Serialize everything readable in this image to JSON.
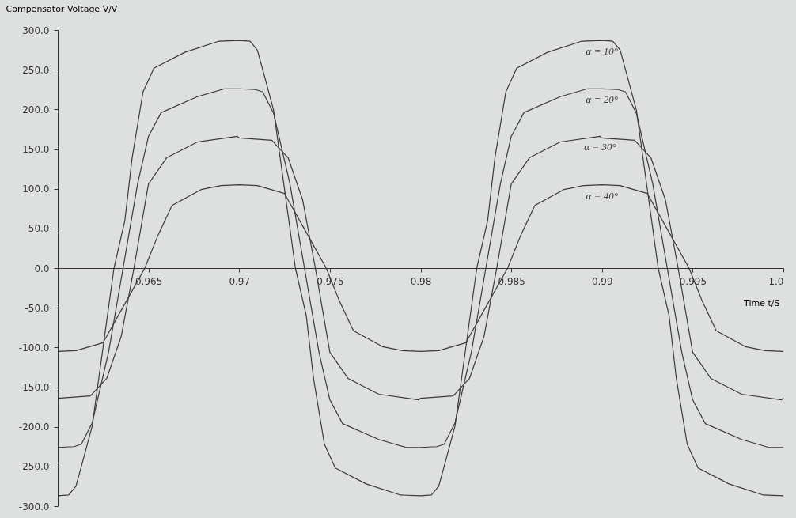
{
  "chart_data": {
    "type": "line",
    "xlabel": "Time t/S",
    "ylabel": "Compensator Voltage V/V",
    "xlim": [
      0.96,
      1.0
    ],
    "ylim": [
      -300,
      300
    ],
    "xticks": [
      0.965,
      0.97,
      0.975,
      0.98,
      0.985,
      0.99,
      0.995,
      {
        "value": 1.0,
        "label": "1.0"
      }
    ],
    "yticks": [
      {
        "value": 300,
        "label": "300.0"
      },
      {
        "value": 250,
        "label": "250.0"
      },
      {
        "value": 200,
        "label": "200.0"
      },
      {
        "value": 150,
        "label": "150.0"
      },
      {
        "value": 100,
        "label": "100.0"
      },
      {
        "value": 50,
        "label": "50.0"
      },
      {
        "value": 0,
        "label": "0.0"
      },
      {
        "value": -50,
        "label": "-50.0"
      },
      {
        "value": -100,
        "label": "-100.0"
      },
      {
        "value": -150,
        "label": "-150.0"
      },
      {
        "value": -200,
        "label": "-200.0"
      },
      {
        "value": -250,
        "label": "-250.0"
      },
      {
        "value": -300,
        "label": "-300.0"
      }
    ],
    "legend": false,
    "marker": "none",
    "line_style": "solid",
    "series": [
      {
        "name": "α = 10°",
        "color": "#3a3a3a",
        "x": [
          0.96,
          0.9606,
          0.961,
          0.9613,
          0.9619,
          0.9631,
          0.9637,
          0.9641,
          0.9647,
          0.9653,
          0.967,
          0.9689,
          0.97,
          0.9706,
          0.971,
          0.9713,
          0.9719,
          0.9731,
          0.9737,
          0.9741,
          0.9747,
          0.9753,
          0.977,
          0.9789,
          0.98,
          0.9806,
          0.981,
          0.9813,
          0.9819,
          0.9831,
          0.9837,
          0.9841,
          0.9847,
          0.9853,
          0.987,
          0.9889,
          0.99,
          0.9906,
          0.991,
          0.9913,
          0.9919,
          0.9931,
          0.9937,
          0.9941,
          0.9947,
          0.9953,
          0.997,
          0.9989,
          1.0
        ],
        "values": [
          -287,
          -286,
          -275,
          -250,
          -199,
          0,
          60,
          139,
          222,
          252,
          272,
          286,
          287,
          286,
          275,
          250,
          199,
          0,
          -60,
          -139,
          -222,
          -252,
          -272,
          -286,
          -287,
          -286,
          -275,
          -250,
          -199,
          0,
          60,
          139,
          222,
          252,
          272,
          286,
          287,
          286,
          275,
          250,
          199,
          0,
          -60,
          -139,
          -222,
          -252,
          -272,
          -286,
          -287
        ]
      },
      {
        "name": "α = 20°",
        "color": "#3a3a3a",
        "x": [
          0.96,
          0.9609,
          0.9613,
          0.9619,
          0.9628,
          0.9636,
          0.9644,
          0.965,
          0.9657,
          0.9677,
          0.9692,
          0.97,
          0.9709,
          0.9713,
          0.9719,
          0.9728,
          0.9736,
          0.9744,
          0.975,
          0.9757,
          0.9777,
          0.9792,
          0.98,
          0.9809,
          0.9813,
          0.9819,
          0.9828,
          0.9836,
          0.9844,
          0.985,
          0.9857,
          0.9877,
          0.9892,
          0.99,
          0.9909,
          0.9913,
          0.9919,
          0.9928,
          0.9936,
          0.9944,
          0.995,
          0.9957,
          0.9977,
          0.9992,
          1.0
        ],
        "values": [
          -226,
          -225,
          -222,
          -195,
          -106,
          0,
          106,
          166,
          196,
          216,
          226,
          226,
          225,
          222,
          195,
          106,
          0,
          -106,
          -166,
          -196,
          -216,
          -226,
          -226,
          -225,
          -222,
          -195,
          -106,
          0,
          106,
          166,
          196,
          216,
          226,
          226,
          225,
          222,
          195,
          106,
          0,
          -106,
          -166,
          -196,
          -216,
          -226,
          -226
        ]
      },
      {
        "name": "α = 30°",
        "color": "#3a3a3a",
        "x": [
          0.96,
          0.9612,
          0.9618,
          0.9627,
          0.9635,
          0.9642,
          0.965,
          0.966,
          0.9677,
          0.9699,
          0.97,
          0.9712,
          0.9718,
          0.9727,
          0.9735,
          0.9742,
          0.975,
          0.976,
          0.9777,
          0.9799,
          0.98,
          0.9812,
          0.9818,
          0.9827,
          0.9835,
          0.9842,
          0.985,
          0.986,
          0.9877,
          0.9899,
          0.99,
          0.9912,
          0.9918,
          0.9927,
          0.9935,
          0.9942,
          0.995,
          0.996,
          0.9977,
          0.9999,
          1.0
        ],
        "values": [
          -164,
          -162,
          -161,
          -139,
          -86,
          0,
          106,
          139,
          159,
          166,
          164,
          162,
          161,
          139,
          86,
          0,
          -106,
          -139,
          -159,
          -166,
          -164,
          -162,
          -161,
          -139,
          -86,
          0,
          106,
          139,
          159,
          166,
          164,
          162,
          161,
          139,
          86,
          0,
          -106,
          -139,
          -159,
          -166,
          -164
        ]
      },
      {
        "name": "α = 40°",
        "color": "#3a3a3a",
        "x": [
          0.96,
          0.961,
          0.9625,
          0.9637,
          0.9648,
          0.9655,
          0.9663,
          0.9679,
          0.969,
          0.97,
          0.971,
          0.9725,
          0.9737,
          0.9748,
          0.9755,
          0.9763,
          0.9779,
          0.979,
          0.98,
          0.981,
          0.9825,
          0.9837,
          0.9848,
          0.9855,
          0.9863,
          0.9879,
          0.989,
          0.99,
          0.991,
          0.9925,
          0.9937,
          0.9948,
          0.9955,
          0.9963,
          0.9979,
          0.999,
          1.0
        ],
        "values": [
          -105,
          -104,
          -94,
          -45,
          0,
          40,
          79,
          99,
          104,
          105,
          104,
          94,
          45,
          0,
          -40,
          -79,
          -99,
          -104,
          -105,
          -104,
          -94,
          -45,
          0,
          40,
          79,
          99,
          104,
          105,
          104,
          94,
          45,
          0,
          -40,
          -79,
          -99,
          -104,
          -105
        ]
      }
    ]
  }
}
